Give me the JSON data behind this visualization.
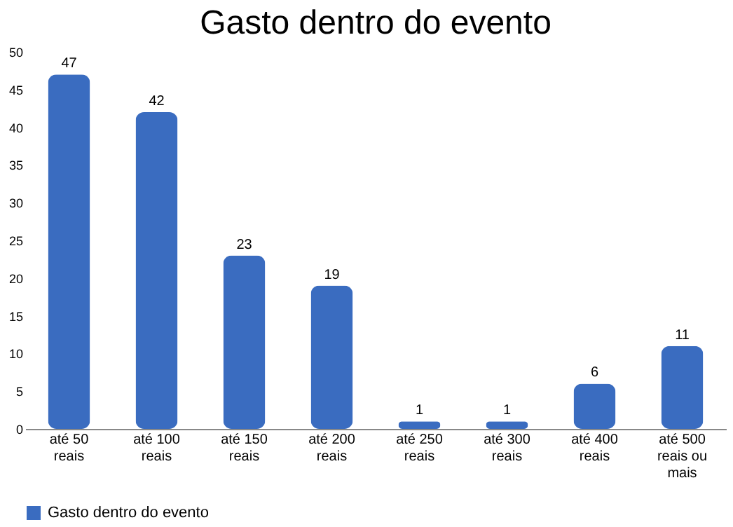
{
  "chart_data": {
    "type": "bar",
    "title": "Gasto dentro do evento",
    "categories": [
      "até 50\nreais",
      "até 100\nreais",
      "até 150\nreais",
      "até 200\nreais",
      "até 250\nreais",
      "até 300\nreais",
      "até 400\nreais",
      "até 500\nreais ou\nmais"
    ],
    "series": [
      {
        "name": "Gasto dentro do evento",
        "color": "#3a6cc0",
        "values": [
          47,
          42,
          23,
          19,
          1,
          1,
          6,
          11
        ]
      }
    ],
    "ylim": [
      0,
      50
    ],
    "yticks": [
      0,
      5,
      10,
      15,
      20,
      25,
      30,
      35,
      40,
      45,
      50
    ],
    "grid": false,
    "legend": "bottom",
    "data_labels": true
  }
}
